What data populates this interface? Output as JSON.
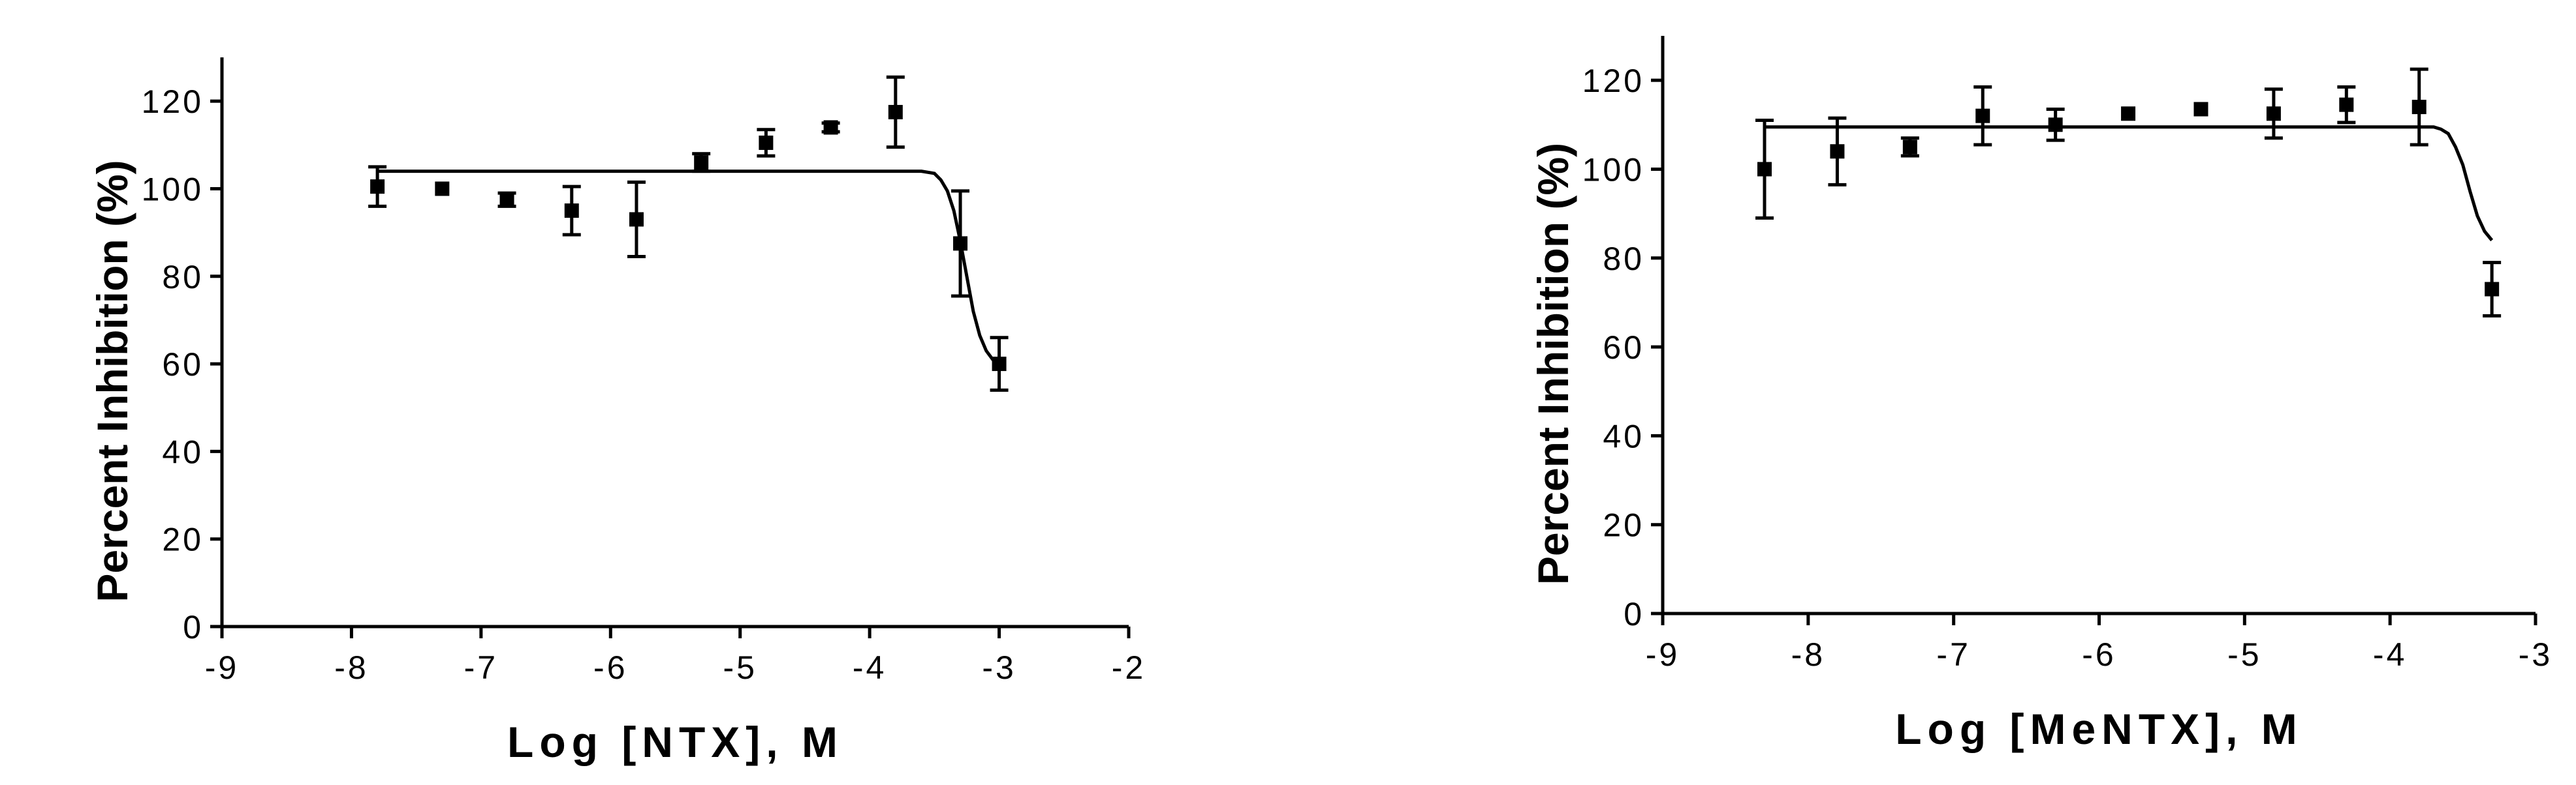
{
  "chart_data": [
    {
      "type": "scatter",
      "color": "#000000",
      "x_label": "Log [NTX], M",
      "y_label": "Percent Inhibition (%)",
      "xlim": [
        -9,
        -2
      ],
      "xticks": [
        -9,
        -8,
        -7,
        -6,
        -5,
        -4,
        -3,
        -2
      ],
      "ylim": [
        0,
        130
      ],
      "yticks": [
        0,
        20,
        40,
        60,
        80,
        100,
        120
      ],
      "x": [
        -7.8,
        -7.3,
        -6.8,
        -6.3,
        -5.8,
        -5.3,
        -4.8,
        -4.3,
        -3.8,
        -3.3,
        -3.0
      ],
      "values": [
        100.5,
        100,
        97.5,
        95,
        93,
        106,
        110.5,
        114,
        117.5,
        87.5,
        60
      ],
      "errors": [
        4.5,
        0,
        1.5,
        5.5,
        8.5,
        2,
        3,
        1,
        8,
        12,
        6
      ],
      "fit": {
        "x": [
          -7.8,
          -3.6,
          -3.5,
          -3.45,
          -3.4,
          -3.35,
          -3.3,
          -3.25,
          -3.2,
          -3.15,
          -3.1,
          -3.05,
          -3.0
        ],
        "values": [
          104,
          104,
          103.5,
          102,
          99.5,
          95,
          88,
          80,
          72,
          66.5,
          63,
          61,
          60.5
        ]
      }
    },
    {
      "type": "scatter",
      "color": "#000000",
      "x_label": "Log [MeNTX], M",
      "y_label": "Percent Inhibition (%)",
      "xlim": [
        -9,
        -3
      ],
      "xticks": [
        -9,
        -8,
        -7,
        -6,
        -5,
        -4,
        -3
      ],
      "ylim": [
        0,
        130
      ],
      "yticks": [
        0,
        20,
        40,
        60,
        80,
        100,
        120
      ],
      "x": [
        -8.3,
        -7.8,
        -7.3,
        -6.8,
        -6.3,
        -5.8,
        -5.3,
        -4.8,
        -4.3,
        -3.8,
        -3.3
      ],
      "values": [
        100,
        104,
        105,
        112,
        110,
        112.5,
        113.5,
        112.5,
        114.5,
        114,
        73
      ],
      "errors": [
        11,
        7.5,
        2,
        6.5,
        3.5,
        0,
        0,
        5.5,
        4,
        8.5,
        6
      ],
      "fit": {
        "x": [
          -8.3,
          -3.7,
          -3.65,
          -3.6,
          -3.55,
          -3.5,
          -3.45,
          -3.4,
          -3.35,
          -3.3
        ],
        "values": [
          109.5,
          109.5,
          109,
          108,
          105,
          101,
          95,
          89.5,
          86,
          84
        ]
      }
    }
  ]
}
